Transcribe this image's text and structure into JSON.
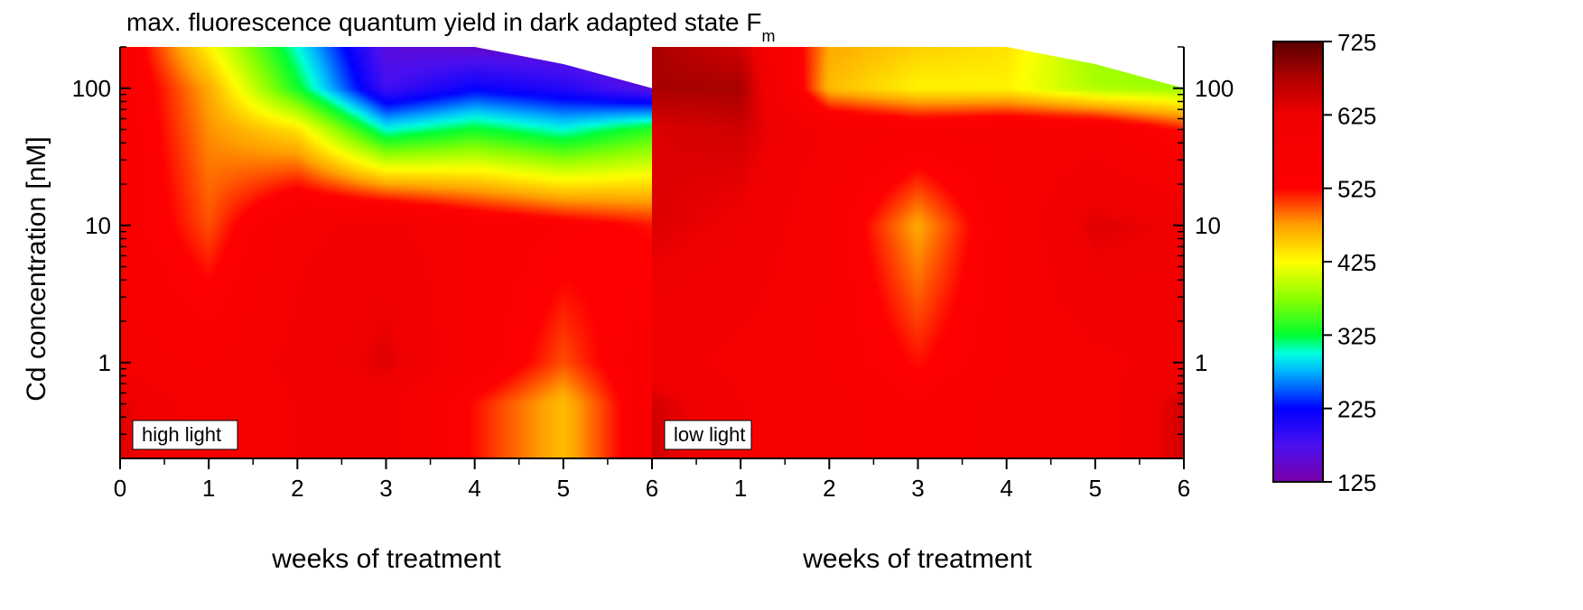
{
  "chart_data": {
    "type": "heatmap",
    "title": "max. fluorescence quantum yield in dark adapted state F",
    "title_subscript": "m",
    "ylabel": "Cd concentration [nM]",
    "y_scale": "log",
    "ylim": [
      0.2,
      200
    ],
    "y_ticks": [
      1,
      10,
      100
    ],
    "y_tick_labels": [
      "1",
      "10",
      "100"
    ],
    "colorbar": {
      "range": [
        125,
        725
      ],
      "ticks": [
        725,
        625,
        525,
        425,
        325,
        225,
        125
      ],
      "tick_labels": [
        "725",
        "625",
        "525",
        "425",
        "325",
        "225",
        "125"
      ],
      "colors": [
        {
          "value": 125,
          "color": "#7a00a8"
        },
        {
          "value": 175,
          "color": "#4a10f0"
        },
        {
          "value": 225,
          "color": "#0000ff"
        },
        {
          "value": 275,
          "color": "#00b4ff"
        },
        {
          "value": 300,
          "color": "#00ffe0"
        },
        {
          "value": 325,
          "color": "#00ff30"
        },
        {
          "value": 375,
          "color": "#8cff00"
        },
        {
          "value": 425,
          "color": "#ffff00"
        },
        {
          "value": 475,
          "color": "#ffa000"
        },
        {
          "value": 525,
          "color": "#ff0000"
        },
        {
          "value": 625,
          "color": "#f00000"
        },
        {
          "value": 675,
          "color": "#b00000"
        },
        {
          "value": 725,
          "color": "#580000"
        }
      ]
    },
    "panels": [
      {
        "label": "high light",
        "xlabel": "weeks of treatment",
        "x": [
          0,
          1,
          2,
          3,
          4,
          5,
          6
        ],
        "x_tick_labels": [
          "0",
          "1",
          "2",
          "3",
          "4",
          "5",
          "6"
        ],
        "y": [
          0.5,
          1,
          10,
          50,
          100,
          200
        ],
        "z": [
          [
            640,
            560,
            590,
            600,
            520,
            460,
            560
          ],
          [
            570,
            560,
            600,
            640,
            560,
            500,
            560
          ],
          [
            560,
            500,
            580,
            600,
            560,
            540,
            520
          ],
          [
            560,
            480,
            440,
            300,
            330,
            300,
            340
          ],
          [
            560,
            470,
            330,
            180,
            220,
            200,
            160
          ],
          [
            560,
            430,
            300,
            160,
            150,
            150,
            140
          ]
        ],
        "mask": {
          "x": [
            4,
            5,
            6
          ],
          "y": [
            200,
            150,
            100
          ]
        }
      },
      {
        "label": "low light",
        "xlabel": "weeks of treatment",
        "x": [
          0,
          1,
          2,
          3,
          4,
          5,
          6
        ],
        "x_tick_labels": [
          "0",
          "1",
          "2",
          "3",
          "4",
          "5",
          "6"
        ],
        "y": [
          0.5,
          1,
          10,
          50,
          100,
          200
        ],
        "z": [
          [
            650,
            590,
            570,
            545,
            570,
            570,
            650
          ],
          [
            600,
            580,
            560,
            520,
            560,
            580,
            600
          ],
          [
            640,
            620,
            560,
            470,
            560,
            640,
            620
          ],
          [
            640,
            650,
            580,
            560,
            570,
            570,
            520
          ],
          [
            680,
            680,
            460,
            430,
            430,
            390,
            380
          ],
          [
            680,
            650,
            470,
            450,
            440,
            380,
            370
          ]
        ],
        "mask": {
          "x": [
            4,
            5,
            6
          ],
          "y": [
            200,
            150,
            100
          ]
        }
      }
    ]
  }
}
